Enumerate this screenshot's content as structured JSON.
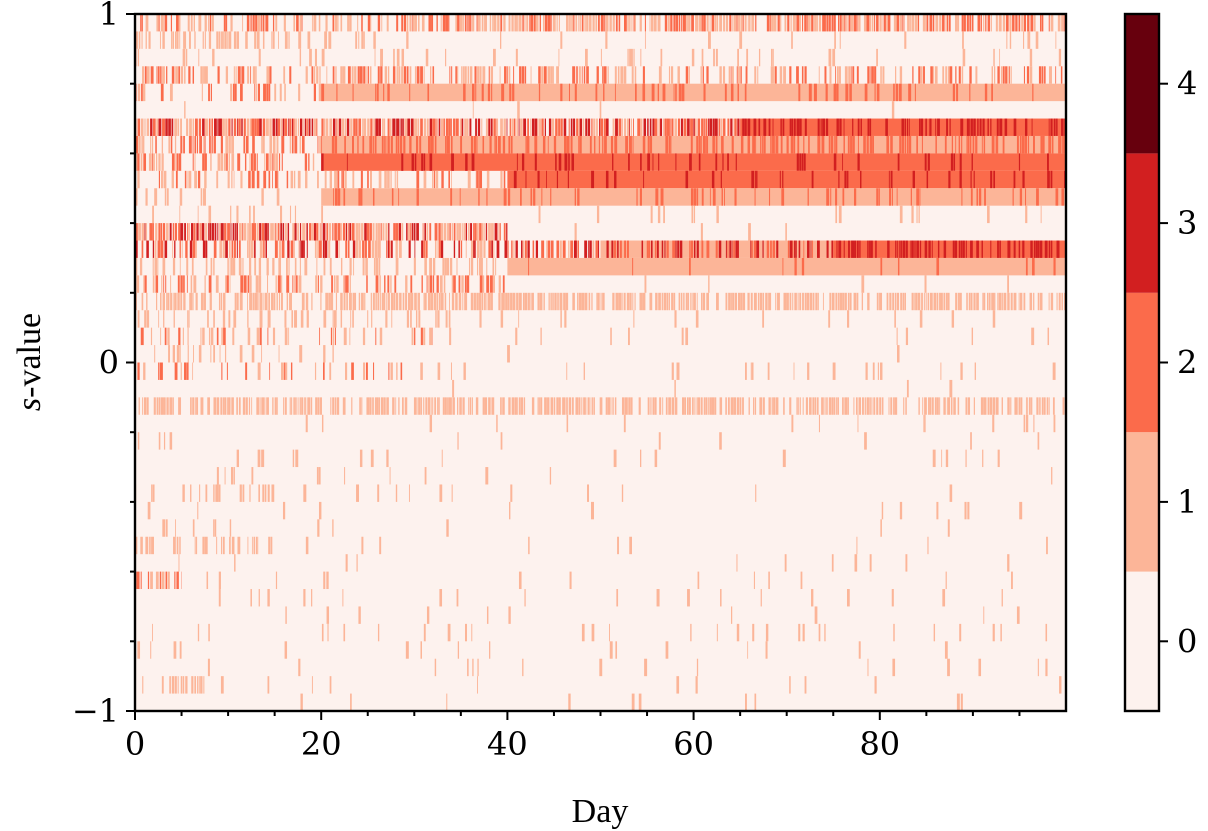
{
  "chart_data": {
    "type": "heatmap",
    "xlabel": "Day",
    "ylabel_italic": "s",
    "ylabel_rest": "-value",
    "xlim": [
      0,
      100
    ],
    "ylim": [
      -1,
      1
    ],
    "x_major_ticks": [
      0,
      20,
      40,
      60,
      80
    ],
    "x_minor_ticks": [
      5,
      10,
      15,
      25,
      30,
      35,
      45,
      50,
      55,
      65,
      70,
      75,
      85,
      90,
      95
    ],
    "x_tick_labels": [
      "0",
      "20",
      "40",
      "60",
      "80"
    ],
    "y_major_ticks": [
      -1,
      0,
      1
    ],
    "y_minor_ticks": [
      -0.8,
      -0.6,
      -0.4,
      -0.2,
      0.2,
      0.4,
      0.6,
      0.8
    ],
    "y_tick_labels": [
      "−1",
      "0",
      "1"
    ],
    "colorbar": {
      "levels": [
        0,
        1,
        2,
        3,
        4
      ],
      "tick_labels": [
        "0",
        "1",
        "2",
        "3",
        "4"
      ],
      "range": [
        -0.5,
        4.5
      ],
      "colors": [
        "#fdf2ee",
        "#fcb598",
        "#fb6b4b",
        "#d21f20",
        "#67000d"
      ]
    },
    "n_rows": 40,
    "rows": [
      {
        "s_range": [
          0.95,
          1.0
        ],
        "segments": [
          {
            "x": [
              0,
              30
            ],
            "base": 0,
            "freq": 0.55,
            "max": 2
          },
          {
            "x": [
              30,
              100
            ],
            "base": 0,
            "freq": 0.85,
            "max": 2
          }
        ]
      },
      {
        "s_range": [
          0.9,
          0.95
        ],
        "segments": [
          {
            "x": [
              0,
              26
            ],
            "base": 0,
            "freq": 0.45,
            "max": 1
          },
          {
            "x": [
              26,
              93
            ],
            "base": 0,
            "freq": 0.03,
            "max": 1
          },
          {
            "x": [
              93,
              100
            ],
            "base": 0,
            "freq": 0.3,
            "max": 1
          }
        ]
      },
      {
        "s_range": [
          0.85,
          0.9
        ],
        "segments": [
          {
            "x": [
              0,
              100
            ],
            "base": 0,
            "freq": 0.12,
            "max": 1
          }
        ]
      },
      {
        "s_range": [
          0.8,
          0.85
        ],
        "segments": [
          {
            "x": [
              0,
              20
            ],
            "base": 0,
            "freq": 0.5,
            "max": 2
          },
          {
            "x": [
              20,
              100
            ],
            "base": 0,
            "freq": 0.55,
            "max": 2
          }
        ]
      },
      {
        "s_range": [
          0.75,
          0.8
        ],
        "segments": [
          {
            "x": [
              0,
              20
            ],
            "base": 0,
            "freq": 0.35,
            "max": 2
          },
          {
            "x": [
              20,
              100
            ],
            "base": 1,
            "freq": 0.2,
            "max": 1
          }
        ]
      },
      {
        "s_range": [
          0.7,
          0.75
        ],
        "segments": [
          {
            "x": [
              0,
              100
            ],
            "base": 0,
            "freq": 0.02,
            "max": 1
          }
        ]
      },
      {
        "s_range": [
          0.65,
          0.7
        ],
        "segments": [
          {
            "x": [
              0,
              65
            ],
            "base": 0,
            "freq": 0.95,
            "max": 3
          },
          {
            "x": [
              65,
              100
            ],
            "base": 2,
            "freq": 0.5,
            "max": 3
          }
        ]
      },
      {
        "s_range": [
          0.6,
          0.65
        ],
        "segments": [
          {
            "x": [
              0,
              20
            ],
            "base": 0,
            "freq": 0.6,
            "max": 2
          },
          {
            "x": [
              20,
              100
            ],
            "base": 1,
            "freq": 0.5,
            "max": 2
          }
        ]
      },
      {
        "s_range": [
          0.55,
          0.6
        ],
        "segments": [
          {
            "x": [
              0,
              20
            ],
            "base": 0,
            "freq": 0.6,
            "max": 2
          },
          {
            "x": [
              20,
              100
            ],
            "base": 2,
            "freq": 0.15,
            "max": 3
          }
        ]
      },
      {
        "s_range": [
          0.5,
          0.55
        ],
        "segments": [
          {
            "x": [
              0,
              40
            ],
            "base": 0,
            "freq": 0.5,
            "max": 2
          },
          {
            "x": [
              40,
              100
            ],
            "base": 2,
            "freq": 0.15,
            "max": 3
          }
        ]
      },
      {
        "s_range": [
          0.45,
          0.5
        ],
        "segments": [
          {
            "x": [
              0,
              20
            ],
            "base": 0,
            "freq": 0.1,
            "max": 1
          },
          {
            "x": [
              20,
              60
            ],
            "base": 1,
            "freq": 0.2,
            "max": 2
          },
          {
            "x": [
              60,
              100
            ],
            "base": 1,
            "freq": 0.25,
            "max": 2
          }
        ]
      },
      {
        "s_range": [
          0.4,
          0.45
        ],
        "segments": [
          {
            "x": [
              0,
              20
            ],
            "base": 0,
            "freq": 0.1,
            "max": 1
          },
          {
            "x": [
              20,
              100
            ],
            "base": 0,
            "freq": 0.05,
            "max": 1
          }
        ]
      },
      {
        "s_range": [
          0.35,
          0.4
        ],
        "segments": [
          {
            "x": [
              0,
              40
            ],
            "base": 0,
            "freq": 0.95,
            "max": 3
          },
          {
            "x": [
              40,
              100
            ],
            "base": 0,
            "freq": 0.02,
            "max": 1
          }
        ]
      },
      {
        "s_range": [
          0.3,
          0.35
        ],
        "segments": [
          {
            "x": [
              0,
              50
            ],
            "base": 0,
            "freq": 0.6,
            "max": 3
          },
          {
            "x": [
              50,
              75
            ],
            "base": 1,
            "freq": 0.6,
            "max": 3
          },
          {
            "x": [
              75,
              100
            ],
            "base": 2,
            "freq": 0.6,
            "max": 3
          }
        ]
      },
      {
        "s_range": [
          0.25,
          0.3
        ],
        "segments": [
          {
            "x": [
              0,
              40
            ],
            "base": 0,
            "freq": 0.4,
            "max": 1
          },
          {
            "x": [
              40,
              100
            ],
            "base": 1,
            "freq": 0.05,
            "max": 1
          }
        ]
      },
      {
        "s_range": [
          0.2,
          0.25
        ],
        "segments": [
          {
            "x": [
              0,
              40
            ],
            "base": 0,
            "freq": 0.5,
            "max": 2
          },
          {
            "x": [
              40,
              100
            ],
            "base": 0,
            "freq": 0.05,
            "max": 1
          }
        ]
      },
      {
        "s_range": [
          0.15,
          0.2
        ],
        "segments": [
          {
            "x": [
              0,
              100
            ],
            "base": 0,
            "freq": 0.75,
            "max": 1
          }
        ]
      },
      {
        "s_range": [
          0.1,
          0.15
        ],
        "segments": [
          {
            "x": [
              0,
              35
            ],
            "base": 0,
            "freq": 0.35,
            "max": 1
          },
          {
            "x": [
              35,
              100
            ],
            "base": 0,
            "freq": 0.04,
            "max": 1
          }
        ]
      },
      {
        "s_range": [
          0.05,
          0.1
        ],
        "segments": [
          {
            "x": [
              0,
              32
            ],
            "base": 0,
            "freq": 0.3,
            "max": 2
          },
          {
            "x": [
              32,
              100
            ],
            "base": 0,
            "freq": 0.03,
            "max": 1
          }
        ]
      },
      {
        "s_range": [
          0.0,
          0.05
        ],
        "segments": [
          {
            "x": [
              0,
              25
            ],
            "base": 0,
            "freq": 0.2,
            "max": 1
          },
          {
            "x": [
              25,
              100
            ],
            "base": 0,
            "freq": 0.02,
            "max": 1
          }
        ]
      },
      {
        "s_range": [
          -0.05,
          0.0
        ],
        "segments": [
          {
            "x": [
              0,
              30
            ],
            "base": 0,
            "freq": 0.3,
            "max": 2
          },
          {
            "x": [
              30,
              100
            ],
            "base": 0,
            "freq": 0.06,
            "max": 1
          }
        ]
      },
      {
        "s_range": [
          -0.1,
          -0.05
        ],
        "segments": [
          {
            "x": [
              0,
              100
            ],
            "base": 0,
            "freq": 0.03,
            "max": 1
          }
        ]
      },
      {
        "s_range": [
          -0.15,
          -0.1
        ],
        "segments": [
          {
            "x": [
              0,
              100
            ],
            "base": 0,
            "freq": 0.7,
            "max": 1
          }
        ]
      },
      {
        "s_range": [
          -0.2,
          -0.15
        ],
        "segments": [
          {
            "x": [
              0,
              100
            ],
            "base": 0,
            "freq": 0.05,
            "max": 1
          }
        ]
      },
      {
        "s_range": [
          -0.25,
          -0.2
        ],
        "segments": [
          {
            "x": [
              0,
              4
            ],
            "base": 0,
            "freq": 0.3,
            "max": 1
          },
          {
            "x": [
              4,
              100
            ],
            "base": 0,
            "freq": 0.02,
            "max": 1
          }
        ]
      },
      {
        "s_range": [
          -0.3,
          -0.25
        ],
        "segments": [
          {
            "x": [
              0,
              100
            ],
            "base": 0,
            "freq": 0.04,
            "max": 1
          }
        ]
      },
      {
        "s_range": [
          -0.35,
          -0.3
        ],
        "segments": [
          {
            "x": [
              0,
              15
            ],
            "base": 0,
            "freq": 0.1,
            "max": 1
          },
          {
            "x": [
              15,
              100
            ],
            "base": 0,
            "freq": 0.02,
            "max": 1
          }
        ]
      },
      {
        "s_range": [
          -0.4,
          -0.35
        ],
        "segments": [
          {
            "x": [
              0,
              15
            ],
            "base": 0,
            "freq": 0.25,
            "max": 1
          },
          {
            "x": [
              15,
              100
            ],
            "base": 0,
            "freq": 0.03,
            "max": 1
          }
        ]
      },
      {
        "s_range": [
          -0.45,
          -0.4
        ],
        "segments": [
          {
            "x": [
              0,
              100
            ],
            "base": 0,
            "freq": 0.04,
            "max": 1
          }
        ]
      },
      {
        "s_range": [
          -0.5,
          -0.45
        ],
        "segments": [
          {
            "x": [
              0,
              15
            ],
            "base": 0,
            "freq": 0.1,
            "max": 1
          },
          {
            "x": [
              15,
              100
            ],
            "base": 0,
            "freq": 0.02,
            "max": 1
          }
        ]
      },
      {
        "s_range": [
          -0.55,
          -0.5
        ],
        "segments": [
          {
            "x": [
              0,
              15
            ],
            "base": 0,
            "freq": 0.3,
            "max": 1
          },
          {
            "x": [
              15,
              100
            ],
            "base": 0,
            "freq": 0.02,
            "max": 1
          }
        ]
      },
      {
        "s_range": [
          -0.6,
          -0.55
        ],
        "segments": [
          {
            "x": [
              0,
              100
            ],
            "base": 0,
            "freq": 0.03,
            "max": 1
          }
        ]
      },
      {
        "s_range": [
          -0.65,
          -0.6
        ],
        "segments": [
          {
            "x": [
              0,
              5
            ],
            "base": 0,
            "freq": 0.6,
            "max": 2
          },
          {
            "x": [
              5,
              100
            ],
            "base": 0,
            "freq": 0.03,
            "max": 1
          }
        ]
      },
      {
        "s_range": [
          -0.7,
          -0.65
        ],
        "segments": [
          {
            "x": [
              0,
              100
            ],
            "base": 0,
            "freq": 0.04,
            "max": 1
          }
        ]
      },
      {
        "s_range": [
          -0.75,
          -0.7
        ],
        "segments": [
          {
            "x": [
              0,
              100
            ],
            "base": 0,
            "freq": 0.03,
            "max": 1
          }
        ]
      },
      {
        "s_range": [
          -0.8,
          -0.75
        ],
        "segments": [
          {
            "x": [
              0,
              100
            ],
            "base": 0,
            "freq": 0.04,
            "max": 1
          }
        ]
      },
      {
        "s_range": [
          -0.85,
          -0.8
        ],
        "segments": [
          {
            "x": [
              0,
              5
            ],
            "base": 0,
            "freq": 0.4,
            "max": 1
          },
          {
            "x": [
              5,
              100
            ],
            "base": 0,
            "freq": 0.02,
            "max": 1
          }
        ]
      },
      {
        "s_range": [
          -0.9,
          -0.85
        ],
        "segments": [
          {
            "x": [
              0,
              100
            ],
            "base": 0,
            "freq": 0.04,
            "max": 1
          }
        ]
      },
      {
        "s_range": [
          -0.95,
          -0.9
        ],
        "segments": [
          {
            "x": [
              0,
              10
            ],
            "base": 0,
            "freq": 0.4,
            "max": 1
          },
          {
            "x": [
              10,
              100
            ],
            "base": 0,
            "freq": 0.02,
            "max": 1
          }
        ]
      },
      {
        "s_range": [
          -1.0,
          -0.95
        ],
        "segments": [
          {
            "x": [
              0,
              100
            ],
            "base": 0,
            "freq": 0.02,
            "max": 1
          }
        ]
      }
    ]
  }
}
